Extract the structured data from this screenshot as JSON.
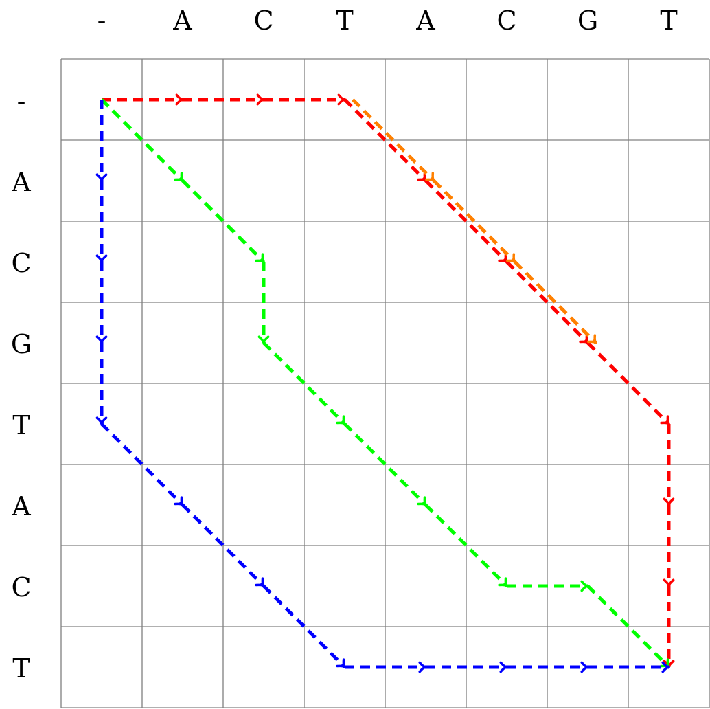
{
  "matrix": {
    "column_labels": [
      "-",
      "A",
      "C",
      "T",
      "A",
      "C",
      "G",
      "T"
    ],
    "row_labels": [
      "-",
      "A",
      "C",
      "G",
      "T",
      "A",
      "C",
      "T"
    ]
  },
  "paths": [
    {
      "color": "#ff0000",
      "nodes": [
        [
          0,
          0
        ],
        [
          0,
          1
        ],
        [
          0,
          2
        ],
        [
          0,
          3
        ],
        [
          1,
          4
        ],
        [
          2,
          5
        ],
        [
          3,
          6
        ],
        [
          4,
          7
        ],
        [
          5,
          7
        ],
        [
          6,
          7
        ],
        [
          7,
          7
        ]
      ]
    },
    {
      "color": "#ff8000",
      "nodes": [
        [
          0,
          3.1
        ],
        [
          1,
          4.1
        ],
        [
          2,
          5.1
        ],
        [
          3,
          6.1
        ]
      ]
    },
    {
      "color": "#00ff00",
      "nodes": [
        [
          0,
          0
        ],
        [
          1,
          1
        ],
        [
          2,
          2
        ],
        [
          3,
          2
        ],
        [
          4,
          3
        ],
        [
          5,
          4
        ],
        [
          6,
          5
        ],
        [
          6,
          6
        ],
        [
          7,
          7
        ]
      ]
    },
    {
      "color": "#0000ff",
      "nodes": [
        [
          0,
          0
        ],
        [
          1,
          0
        ],
        [
          2,
          0
        ],
        [
          3,
          0
        ],
        [
          4,
          0
        ],
        [
          5,
          1
        ],
        [
          6,
          2
        ],
        [
          7,
          3
        ],
        [
          7,
          4
        ],
        [
          7,
          5
        ],
        [
          7,
          6
        ],
        [
          7,
          7
        ]
      ]
    }
  ]
}
